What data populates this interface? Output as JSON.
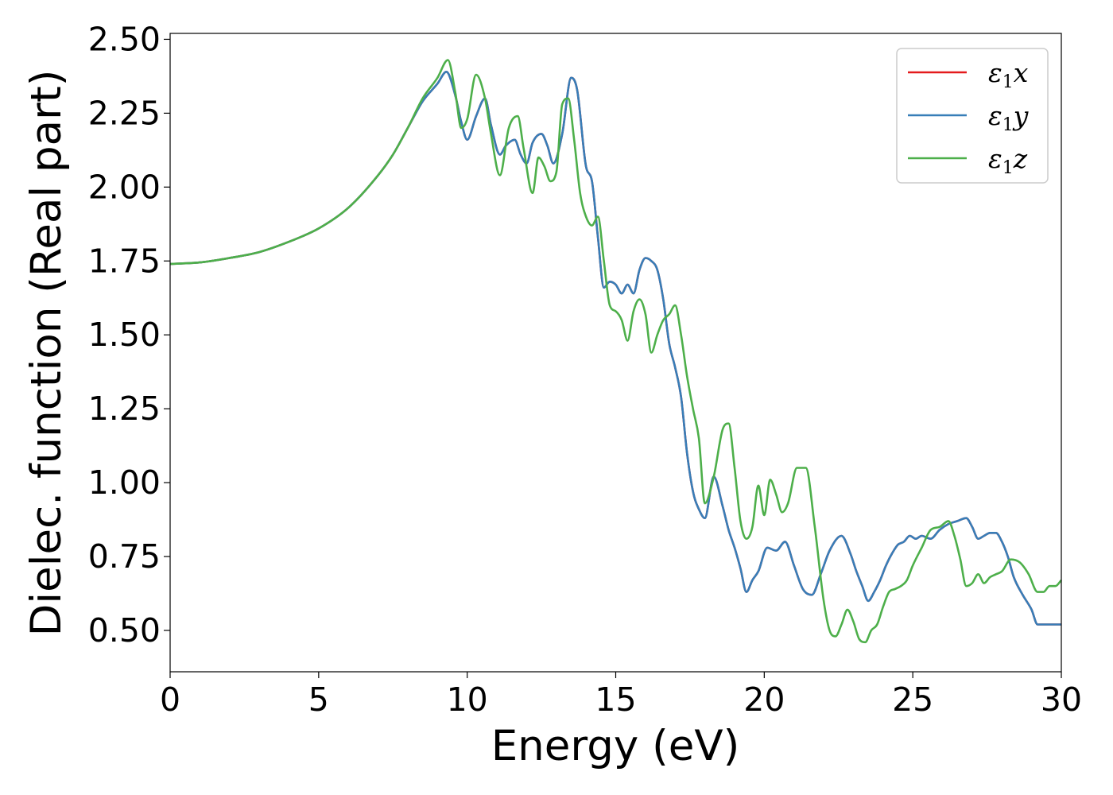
{
  "chart_data": {
    "type": "line",
    "xlabel": "Energy (eV)",
    "ylabel": "Dielec. function (Real part)",
    "xlim": [
      0,
      30
    ],
    "ylim": [
      0.36,
      2.52
    ],
    "xticks": [
      0,
      5,
      10,
      15,
      20,
      25,
      30
    ],
    "xtick_labels": [
      "0",
      "5",
      "10",
      "15",
      "20",
      "25",
      "30"
    ],
    "yticks": [
      0.5,
      0.75,
      1.0,
      1.25,
      1.5,
      1.75,
      2.0,
      2.25,
      2.5
    ],
    "ytick_labels": [
      "0.50",
      "0.75",
      "1.00",
      "1.25",
      "1.50",
      "1.75",
      "2.00",
      "2.25",
      "2.50"
    ],
    "grid": false,
    "legend_position": "top-right",
    "legend": [
      {
        "base": "ε",
        "sub": "1",
        "tail": "x",
        "color": "#e41a1c"
      },
      {
        "base": "ε",
        "sub": "1",
        "tail": "y",
        "color": "#377eb8"
      },
      {
        "base": "ε",
        "sub": "1",
        "tail": "z",
        "color": "#4daf4a"
      }
    ],
    "series": [
      {
        "color": "#e41a1c",
        "x": [
          0,
          1,
          2,
          3,
          4,
          5,
          6,
          7,
          7.5,
          8,
          8.5,
          9,
          9.3,
          9.6,
          9.8,
          10.0,
          10.3,
          10.6,
          10.8,
          11.1,
          11.3,
          11.6,
          11.8,
          12.0,
          12.2,
          12.5,
          12.7,
          12.9,
          13.2,
          13.5,
          13.7,
          14.0,
          14.2,
          14.4,
          14.6,
          14.8,
          15.0,
          15.2,
          15.4,
          15.6,
          15.8,
          16.0,
          16.2,
          16.4,
          16.6,
          16.8,
          17.0,
          17.2,
          17.4,
          17.6,
          17.8,
          18.0,
          18.3,
          18.6,
          18.8,
          19.0,
          19.2,
          19.4,
          19.6,
          19.8,
          20.1,
          20.4,
          20.7,
          21.0,
          21.3,
          21.6,
          21.9,
          22.2,
          22.6,
          22.9,
          23.1,
          23.3,
          23.5,
          23.7,
          23.9,
          24.1,
          24.3,
          24.5,
          24.7,
          24.9,
          25.1,
          25.3,
          25.6,
          25.9,
          26.2,
          26.5,
          26.8,
          27.0,
          27.2,
          27.4,
          27.6,
          27.8,
          28.0,
          28.2,
          28.4,
          28.7,
          29.0,
          29.2,
          29.4,
          29.6,
          29.8,
          30.0
        ],
        "values": [
          1.74,
          1.745,
          1.76,
          1.78,
          1.815,
          1.86,
          1.93,
          2.04,
          2.11,
          2.2,
          2.29,
          2.35,
          2.39,
          2.31,
          2.22,
          2.16,
          2.24,
          2.3,
          2.21,
          2.11,
          2.14,
          2.16,
          2.11,
          2.08,
          2.15,
          2.18,
          2.14,
          2.08,
          2.18,
          2.37,
          2.33,
          2.07,
          2.02,
          1.83,
          1.66,
          1.68,
          1.67,
          1.64,
          1.67,
          1.64,
          1.72,
          1.76,
          1.75,
          1.72,
          1.62,
          1.47,
          1.39,
          1.29,
          1.1,
          0.97,
          0.91,
          0.88,
          1.02,
          0.92,
          0.84,
          0.78,
          0.71,
          0.63,
          0.67,
          0.7,
          0.78,
          0.77,
          0.8,
          0.72,
          0.64,
          0.62,
          0.69,
          0.77,
          0.82,
          0.76,
          0.7,
          0.65,
          0.6,
          0.63,
          0.67,
          0.72,
          0.76,
          0.79,
          0.8,
          0.82,
          0.81,
          0.82,
          0.81,
          0.84,
          0.86,
          0.87,
          0.88,
          0.85,
          0.81,
          0.82,
          0.83,
          0.83,
          0.8,
          0.75,
          0.68,
          0.62,
          0.57,
          0.52,
          0.52,
          0.52,
          0.52,
          0.52
        ]
      },
      {
        "color": "#377eb8",
        "x": [
          0,
          1,
          2,
          3,
          4,
          5,
          6,
          7,
          7.5,
          8,
          8.5,
          9,
          9.3,
          9.6,
          9.8,
          10.0,
          10.3,
          10.6,
          10.8,
          11.1,
          11.3,
          11.6,
          11.8,
          12.0,
          12.2,
          12.5,
          12.7,
          12.9,
          13.2,
          13.5,
          13.7,
          14.0,
          14.2,
          14.4,
          14.6,
          14.8,
          15.0,
          15.2,
          15.4,
          15.6,
          15.8,
          16.0,
          16.2,
          16.4,
          16.6,
          16.8,
          17.0,
          17.2,
          17.4,
          17.6,
          17.8,
          18.0,
          18.3,
          18.6,
          18.8,
          19.0,
          19.2,
          19.4,
          19.6,
          19.8,
          20.1,
          20.4,
          20.7,
          21.0,
          21.3,
          21.6,
          21.9,
          22.2,
          22.6,
          22.9,
          23.1,
          23.3,
          23.5,
          23.7,
          23.9,
          24.1,
          24.3,
          24.5,
          24.7,
          24.9,
          25.1,
          25.3,
          25.6,
          25.9,
          26.2,
          26.5,
          26.8,
          27.0,
          27.2,
          27.4,
          27.6,
          27.8,
          28.0,
          28.2,
          28.4,
          28.7,
          29.0,
          29.2,
          29.4,
          29.6,
          29.8,
          30.0
        ],
        "values": [
          1.74,
          1.745,
          1.76,
          1.78,
          1.815,
          1.86,
          1.93,
          2.04,
          2.11,
          2.2,
          2.29,
          2.35,
          2.39,
          2.31,
          2.22,
          2.16,
          2.24,
          2.3,
          2.21,
          2.11,
          2.14,
          2.16,
          2.11,
          2.08,
          2.15,
          2.18,
          2.14,
          2.08,
          2.18,
          2.37,
          2.33,
          2.07,
          2.02,
          1.83,
          1.66,
          1.68,
          1.67,
          1.64,
          1.67,
          1.64,
          1.72,
          1.76,
          1.75,
          1.72,
          1.62,
          1.47,
          1.39,
          1.29,
          1.1,
          0.97,
          0.91,
          0.88,
          1.02,
          0.92,
          0.84,
          0.78,
          0.71,
          0.63,
          0.67,
          0.7,
          0.78,
          0.77,
          0.8,
          0.72,
          0.64,
          0.62,
          0.69,
          0.77,
          0.82,
          0.76,
          0.7,
          0.65,
          0.6,
          0.63,
          0.67,
          0.72,
          0.76,
          0.79,
          0.8,
          0.82,
          0.81,
          0.82,
          0.81,
          0.84,
          0.86,
          0.87,
          0.88,
          0.85,
          0.81,
          0.82,
          0.83,
          0.83,
          0.8,
          0.75,
          0.68,
          0.62,
          0.57,
          0.52,
          0.52,
          0.52,
          0.52,
          0.52
        ]
      },
      {
        "color": "#4daf4a",
        "x": [
          0,
          1,
          2,
          3,
          4,
          5,
          6,
          7,
          7.5,
          8,
          8.5,
          9,
          9.35,
          9.6,
          9.8,
          10.0,
          10.3,
          10.6,
          10.8,
          11.1,
          11.4,
          11.7,
          11.9,
          12.2,
          12.4,
          12.6,
          12.8,
          13.0,
          13.2,
          13.4,
          13.6,
          13.8,
          14.0,
          14.2,
          14.4,
          14.6,
          14.8,
          15.0,
          15.2,
          15.4,
          15.6,
          15.8,
          16.0,
          16.2,
          16.4,
          16.6,
          16.8,
          17.0,
          17.2,
          17.4,
          17.6,
          17.8,
          18.0,
          18.3,
          18.6,
          18.8,
          19.0,
          19.2,
          19.4,
          19.6,
          19.8,
          20.0,
          20.2,
          20.4,
          20.6,
          20.8,
          21.1,
          21.4,
          21.7,
          22.0,
          22.2,
          22.4,
          22.6,
          22.8,
          23.0,
          23.2,
          23.4,
          23.6,
          23.8,
          24.0,
          24.2,
          24.4,
          24.6,
          24.8,
          25.0,
          25.3,
          25.6,
          25.9,
          26.2,
          26.4,
          26.6,
          26.8,
          27.0,
          27.2,
          27.4,
          27.6,
          27.8,
          28.0,
          28.3,
          28.6,
          28.9,
          29.2,
          29.4,
          29.6,
          29.8,
          30.0
        ],
        "values": [
          1.74,
          1.745,
          1.76,
          1.78,
          1.815,
          1.86,
          1.93,
          2.04,
          2.11,
          2.2,
          2.3,
          2.37,
          2.43,
          2.32,
          2.2,
          2.23,
          2.38,
          2.3,
          2.18,
          2.04,
          2.2,
          2.24,
          2.13,
          1.98,
          2.1,
          2.07,
          2.02,
          2.05,
          2.28,
          2.3,
          2.16,
          1.98,
          1.9,
          1.87,
          1.9,
          1.75,
          1.6,
          1.58,
          1.55,
          1.48,
          1.58,
          1.62,
          1.57,
          1.44,
          1.5,
          1.55,
          1.57,
          1.6,
          1.5,
          1.36,
          1.25,
          1.15,
          0.93,
          1.02,
          1.18,
          1.2,
          1.05,
          0.87,
          0.81,
          0.85,
          0.99,
          0.89,
          1.01,
          0.96,
          0.9,
          0.93,
          1.05,
          1.05,
          0.85,
          0.6,
          0.5,
          0.48,
          0.52,
          0.57,
          0.53,
          0.47,
          0.46,
          0.5,
          0.52,
          0.58,
          0.63,
          0.64,
          0.65,
          0.67,
          0.72,
          0.78,
          0.84,
          0.85,
          0.87,
          0.82,
          0.74,
          0.65,
          0.66,
          0.69,
          0.66,
          0.68,
          0.69,
          0.7,
          0.74,
          0.73,
          0.69,
          0.63,
          0.63,
          0.65,
          0.65,
          0.67
        ]
      }
    ]
  }
}
